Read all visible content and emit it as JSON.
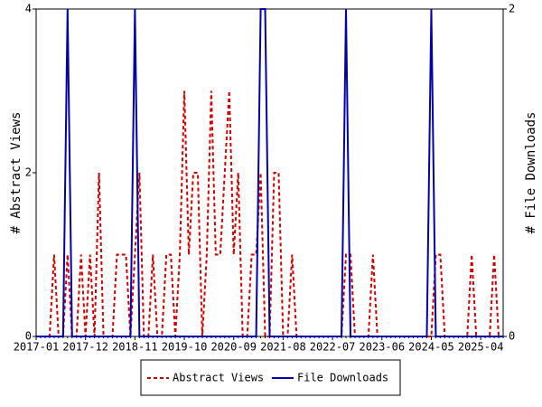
{
  "chart_data": {
    "type": "line",
    "categories": [
      "2017-01",
      null,
      null,
      null,
      null,
      null,
      null,
      null,
      null,
      null,
      null,
      "2017-12",
      null,
      null,
      null,
      null,
      null,
      null,
      null,
      null,
      null,
      null,
      "2018-11",
      null,
      null,
      null,
      null,
      null,
      null,
      null,
      null,
      null,
      null,
      "2019-10",
      null,
      null,
      null,
      null,
      null,
      null,
      null,
      null,
      null,
      null,
      "2020-09",
      null,
      null,
      null,
      null,
      null,
      null,
      null,
      null,
      null,
      null,
      "2021-08",
      null,
      null,
      null,
      null,
      null,
      null,
      null,
      null,
      null,
      null,
      "2022-07",
      null,
      null,
      null,
      null,
      null,
      null,
      null,
      null,
      null,
      null,
      "2023-06",
      null,
      null,
      null,
      null,
      null,
      null,
      null,
      null,
      null,
      null,
      "2024-05",
      null,
      null,
      null,
      null,
      null,
      null,
      null,
      null,
      null,
      null,
      "2025-04",
      null,
      null,
      null,
      null,
      null
    ],
    "ylabel": "# Abstract Views",
    "y2label": "# File Downloads",
    "ylim": [
      0,
      4
    ],
    "yticks": [
      0,
      2,
      4
    ],
    "y2lim": [
      0,
      2
    ],
    "y2ticks": [
      0,
      2
    ],
    "legend": "bottom",
    "series": [
      {
        "name": "Abstract Views",
        "color": "#cc0000",
        "dash": true,
        "values": [
          0,
          0,
          0,
          0,
          1,
          0,
          0,
          1,
          0,
          0,
          1,
          0,
          1,
          0,
          2,
          0,
          0,
          0,
          1,
          1,
          1,
          0,
          1,
          2,
          0,
          0,
          1,
          0,
          0,
          1,
          1,
          0,
          1,
          3,
          1,
          2,
          2,
          0,
          1,
          3,
          1,
          1,
          2,
          3,
          1,
          2,
          0,
          0,
          1,
          1,
          2,
          0,
          0,
          2,
          2,
          0,
          0,
          1,
          0,
          0,
          0,
          0,
          0,
          0,
          0,
          0,
          0,
          0,
          0,
          1,
          1,
          0,
          0,
          0,
          0,
          1,
          0,
          0,
          0,
          0,
          0,
          0,
          0,
          0,
          0,
          0,
          0,
          0,
          0,
          1,
          1,
          0,
          0,
          0,
          0,
          0,
          0,
          1,
          0,
          0,
          0,
          0,
          1,
          0,
          0
        ]
      },
      {
        "name": "File Downloads",
        "color": "#0000aa",
        "dash": false,
        "axis": "y2",
        "values": [
          0,
          0,
          0,
          0,
          0,
          0,
          0,
          2,
          0,
          0,
          0,
          0,
          0,
          0,
          0,
          0,
          0,
          0,
          0,
          0,
          0,
          0,
          2,
          0,
          0,
          0,
          0,
          0,
          0,
          0,
          0,
          0,
          0,
          0,
          0,
          0,
          0,
          0,
          0,
          0,
          0,
          0,
          0,
          0,
          0,
          0,
          0,
          0,
          0,
          0,
          2,
          2,
          0,
          0,
          0,
          0,
          0,
          0,
          0,
          0,
          0,
          0,
          0,
          0,
          0,
          0,
          0,
          0,
          0,
          2,
          0,
          0,
          0,
          0,
          0,
          0,
          0,
          0,
          0,
          0,
          0,
          0,
          0,
          0,
          0,
          0,
          0,
          0,
          2,
          0,
          0,
          0,
          0,
          0,
          0,
          0,
          0,
          0,
          0,
          0,
          0,
          0,
          0,
          0,
          0
        ]
      }
    ]
  }
}
